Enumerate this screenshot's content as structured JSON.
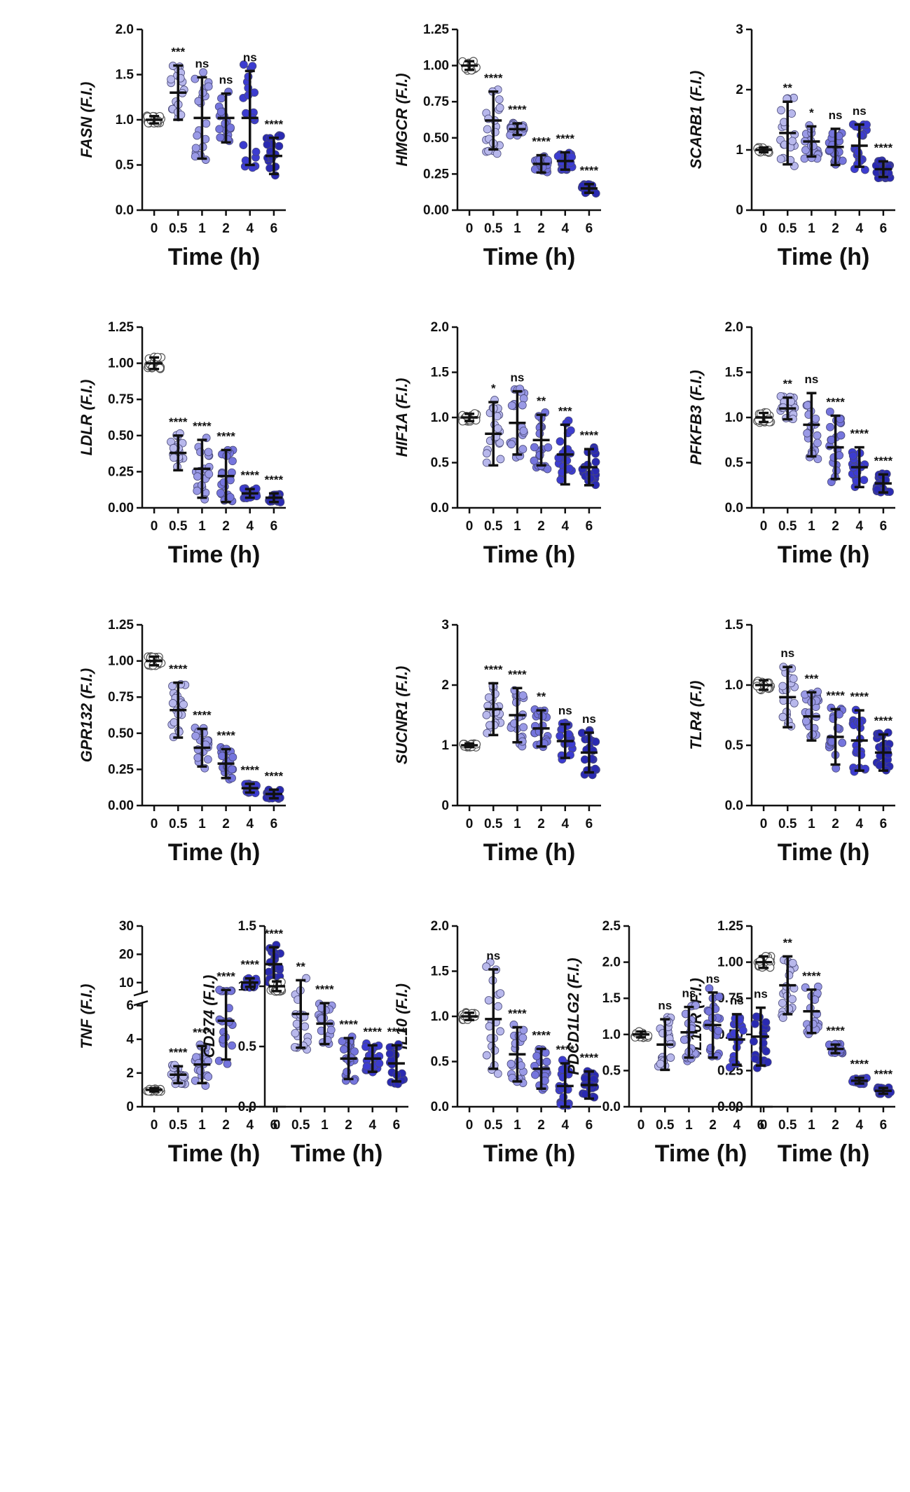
{
  "figure": {
    "xlabel": "Time (h)",
    "categories": [
      "0",
      "0.5",
      "1",
      "2",
      "4",
      "6"
    ],
    "colors": {
      "0": "#ffffff",
      "0.5": "#b8b8ec",
      "1": "#9a9ae6",
      "2": "#7575dd",
      "4": "#3c3cd0",
      "6": "#2a2ab2",
      "point_stroke": "#4a4a7a",
      "control_stroke": "#555555"
    }
  },
  "chart_data": [
    {
      "type": "scatter",
      "gene": "FASN",
      "ylabel_gene": "FASN",
      "ylabel_suffix": " (F.I.)",
      "xlabel": "Time (h)",
      "categories": [
        "0",
        "0.5",
        "1",
        "2",
        "4",
        "6"
      ],
      "ylim": [
        0,
        2.0
      ],
      "yticks": [
        "0.0",
        "0.5",
        "1.0",
        "1.5",
        "2.0"
      ],
      "means": [
        1.0,
        1.3,
        1.02,
        1.02,
        1.02,
        0.6
      ],
      "sd": [
        0.04,
        0.3,
        0.45,
        0.27,
        0.52,
        0.2
      ],
      "significance": [
        "",
        "***",
        "ns",
        "ns",
        "ns",
        "****"
      ]
    },
    {
      "type": "scatter",
      "gene": "HMGCR",
      "ylabel_gene": "HMGCR",
      "ylabel_suffix": " (F.I.)",
      "xlabel": "Time (h)",
      "categories": [
        "0",
        "0.5",
        "1",
        "2",
        "4",
        "6"
      ],
      "ylim": [
        0,
        1.25
      ],
      "yticks": [
        "0.00",
        "0.25",
        "0.50",
        "0.75",
        "1.00",
        "1.25"
      ],
      "means": [
        1.0,
        0.62,
        0.56,
        0.32,
        0.34,
        0.15
      ],
      "sd": [
        0.03,
        0.2,
        0.04,
        0.06,
        0.06,
        0.03
      ],
      "significance": [
        "",
        "****",
        "****",
        "****",
        "****",
        "****"
      ]
    },
    {
      "type": "scatter",
      "gene": "SCARB1",
      "ylabel_gene": "SCARB1",
      "ylabel_suffix": " (F.I.)",
      "xlabel": "Time (h)",
      "categories": [
        "0",
        "0.5",
        "1",
        "2",
        "4",
        "6"
      ],
      "ylim": [
        0,
        3
      ],
      "yticks": [
        "0",
        "1",
        "2",
        "3"
      ],
      "means": [
        1.0,
        1.28,
        1.14,
        1.05,
        1.07,
        0.68
      ],
      "sd": [
        0.04,
        0.52,
        0.25,
        0.3,
        0.35,
        0.13
      ],
      "significance": [
        "",
        "**",
        "*",
        "ns",
        "ns",
        "****"
      ]
    },
    {
      "type": "scatter",
      "gene": "LDLR",
      "ylabel_gene": "LDLR",
      "ylabel_suffix": " (F.I.)",
      "xlabel": "Time (h)",
      "categories": [
        "0",
        "0.5",
        "1",
        "2",
        "4",
        "6"
      ],
      "ylim": [
        0,
        1.25
      ],
      "yticks": [
        "0.00",
        "0.25",
        "0.50",
        "0.75",
        "1.00",
        "1.25"
      ],
      "means": [
        1.0,
        0.38,
        0.27,
        0.22,
        0.1,
        0.07
      ],
      "sd": [
        0.04,
        0.12,
        0.2,
        0.18,
        0.03,
        0.03
      ],
      "significance": [
        "",
        "****",
        "****",
        "****",
        "****",
        "****"
      ]
    },
    {
      "type": "scatter",
      "gene": "HIF1A",
      "ylabel_gene": "HIF1A",
      "ylabel_suffix": " (F.I.)",
      "xlabel": "Time (h)",
      "categories": [
        "0",
        "0.5",
        "1",
        "2",
        "4",
        "6"
      ],
      "ylim": [
        0,
        2.0
      ],
      "yticks": [
        "0.0",
        "0.5",
        "1.0",
        "1.5",
        "2.0"
      ],
      "means": [
        1.0,
        0.82,
        0.94,
        0.75,
        0.59,
        0.45
      ],
      "sd": [
        0.04,
        0.35,
        0.35,
        0.28,
        0.33,
        0.2
      ],
      "significance": [
        "",
        "*",
        "ns",
        "**",
        "***",
        "****"
      ]
    },
    {
      "type": "scatter",
      "gene": "PFKFB3",
      "ylabel_gene": "PFKFB3",
      "ylabel_suffix": " (F.I.)",
      "xlabel": "Time (h)",
      "categories": [
        "0",
        "0.5",
        "1",
        "2",
        "4",
        "6"
      ],
      "ylim": [
        0,
        2.0
      ],
      "yticks": [
        "0.0",
        "0.5",
        "1.0",
        "1.5",
        "2.0"
      ],
      "means": [
        1.0,
        1.1,
        0.92,
        0.67,
        0.45,
        0.27
      ],
      "sd": [
        0.05,
        0.12,
        0.35,
        0.35,
        0.22,
        0.1
      ],
      "significance": [
        "",
        "**",
        "ns",
        "****",
        "****",
        "****"
      ]
    },
    {
      "type": "scatter",
      "gene": "GPR132",
      "ylabel_gene": "GPR132",
      "ylabel_suffix": " (F.I.)",
      "xlabel": "Time (h)",
      "categories": [
        "0",
        "0.5",
        "1",
        "2",
        "4",
        "6"
      ],
      "ylim": [
        0,
        1.25
      ],
      "yticks": [
        "0.00",
        "0.25",
        "0.50",
        "0.75",
        "1.00",
        "1.25"
      ],
      "means": [
        1.0,
        0.66,
        0.4,
        0.29,
        0.12,
        0.08
      ],
      "sd": [
        0.03,
        0.19,
        0.13,
        0.1,
        0.03,
        0.03
      ],
      "significance": [
        "",
        "****",
        "****",
        "****",
        "****",
        "****"
      ]
    },
    {
      "type": "scatter",
      "gene": "SUCNR1",
      "ylabel_gene": "SUCNR1",
      "ylabel_suffix": " (F.I.)",
      "xlabel": "Time (h)",
      "categories": [
        "0",
        "0.5",
        "1",
        "2",
        "4",
        "6"
      ],
      "ylim": [
        0,
        3
      ],
      "yticks": [
        "0",
        "1",
        "2",
        "3"
      ],
      "means": [
        1.0,
        1.6,
        1.5,
        1.28,
        1.07,
        0.88
      ],
      "sd": [
        0.03,
        0.43,
        0.45,
        0.3,
        0.28,
        0.33
      ],
      "significance": [
        "",
        "****",
        "****",
        "**",
        "ns",
        "ns"
      ]
    },
    {
      "type": "scatter",
      "gene": "TLR4",
      "ylabel_gene": "TLR4",
      "ylabel_suffix": " (F.I)",
      "xlabel": "Time (h)",
      "categories": [
        "0",
        "0.5",
        "1",
        "2",
        "4",
        "6"
      ],
      "ylim": [
        0,
        1.5
      ],
      "yticks": [
        "0.0",
        "0.5",
        "1.0",
        "1.5"
      ],
      "means": [
        1.0,
        0.9,
        0.74,
        0.57,
        0.54,
        0.44
      ],
      "sd": [
        0.04,
        0.25,
        0.2,
        0.23,
        0.25,
        0.15
      ],
      "significance": [
        "",
        "ns",
        "***",
        "****",
        "****",
        "****"
      ]
    },
    {
      "type": "scatter",
      "gene": "TNF",
      "ylabel_gene": "TNF",
      "ylabel_suffix": " (F.I.)",
      "xlabel": "Time (h)",
      "categories": [
        "0",
        "0.5",
        "1",
        "2",
        "4",
        "6"
      ],
      "broken_axis": true,
      "ylim_lower": [
        0,
        6
      ],
      "yticks_lower": [
        "0",
        "2",
        "4",
        "6"
      ],
      "ylim_upper": [
        7,
        30
      ],
      "yticks_upper": [
        "10",
        "20",
        "30"
      ],
      "means": [
        1.0,
        1.9,
        2.5,
        5.1,
        10.0,
        16.5
      ],
      "sd": [
        0.1,
        0.5,
        1.1,
        2.3,
        1.5,
        6.0
      ],
      "significance": [
        "",
        "****",
        "****",
        "****",
        "****",
        "****"
      ]
    },
    {
      "type": "scatter",
      "gene": "IL10",
      "ylabel_gene": "IL10",
      "ylabel_suffix": " (F.I.)",
      "xlabel": "Time (h)",
      "categories": [
        "0",
        "0.5",
        "1",
        "2",
        "4",
        "6"
      ],
      "ylim": [
        0,
        2.0
      ],
      "yticks": [
        "0.0",
        "0.5",
        "1.0",
        "1.5",
        "2.0"
      ],
      "means": [
        1.0,
        0.97,
        0.58,
        0.42,
        0.23,
        0.24
      ],
      "sd": [
        0.04,
        0.55,
        0.3,
        0.22,
        0.25,
        0.15
      ],
      "significance": [
        "",
        "ns",
        "****",
        "****",
        "****",
        "****"
      ]
    },
    {
      "type": "scatter",
      "gene": "IL10R",
      "ylabel_gene": "IL10R",
      "ylabel_suffix": " (F.I.)",
      "xlabel": "Time (h)",
      "categories": [
        "0",
        "0.5",
        "1",
        "2",
        "4",
        "6"
      ],
      "ylim": [
        0,
        1.25
      ],
      "yticks": [
        "0.00",
        "0.25",
        "0.50",
        "0.75",
        "1.00",
        "1.25"
      ],
      "means": [
        1.0,
        0.84,
        0.66,
        0.4,
        0.18,
        0.11
      ],
      "sd": [
        0.04,
        0.2,
        0.15,
        0.03,
        0.02,
        0.02
      ],
      "significance": [
        "",
        "**",
        "****",
        "****",
        "****",
        "****"
      ]
    },
    {
      "type": "scatter",
      "gene": "CD274",
      "ylabel_gene": "CD274",
      "ylabel_suffix": " (F.I.)",
      "xlabel": "Time (h)",
      "categories": [
        "0",
        "0.5",
        "1",
        "2",
        "4",
        "6"
      ],
      "ylim": [
        0,
        1.5
      ],
      "yticks": [
        "0.0",
        "0.5",
        "1.0",
        "1.5"
      ],
      "means": [
        1.0,
        0.77,
        0.69,
        0.4,
        0.4,
        0.36
      ],
      "sd": [
        0.04,
        0.28,
        0.17,
        0.17,
        0.11,
        0.15
      ],
      "significance": [
        "",
        "**",
        "****",
        "****",
        "****",
        "****"
      ]
    },
    {
      "type": "scatter",
      "gene": "PDCD1LG2",
      "ylabel_gene": "PDCD1LG2",
      "ylabel_suffix": " (F.I.)",
      "xlabel": "Time (h)",
      "categories": [
        "0",
        "0.5",
        "1",
        "2",
        "4",
        "6"
      ],
      "ylim": [
        0,
        2.5
      ],
      "yticks": [
        "0.0",
        "0.5",
        "1.0",
        "1.5",
        "2.0",
        "2.5"
      ],
      "means": [
        1.0,
        0.86,
        1.03,
        1.13,
        0.93,
        0.97
      ],
      "sd": [
        0.04,
        0.35,
        0.35,
        0.45,
        0.35,
        0.4
      ],
      "significance": [
        "",
        "ns",
        "ns",
        "ns",
        "ns",
        "ns"
      ]
    }
  ]
}
